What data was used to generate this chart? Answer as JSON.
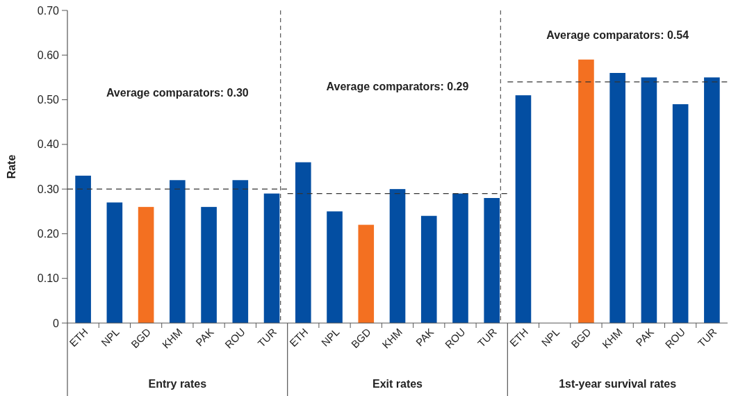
{
  "chart_data": [
    {
      "type": "bar",
      "xlabel": "Entry rates",
      "ylabel": "Rate",
      "categories": [
        "ETH",
        "NPL",
        "BGD",
        "KHM",
        "PAK",
        "ROU",
        "TUR"
      ],
      "values": [
        0.33,
        0.27,
        0.26,
        0.32,
        0.26,
        0.32,
        0.29
      ],
      "colors": [
        "#034ea2",
        "#034ea2",
        "#f37021",
        "#034ea2",
        "#034ea2",
        "#034ea2",
        "#034ea2"
      ],
      "ylim": [
        0,
        0.7
      ],
      "yticks": [
        0,
        {
          "value": 0.1,
          "label": "0.10"
        },
        {
          "value": 0.2,
          "label": "0.20"
        },
        {
          "value": 0.3,
          "label": "0.30"
        },
        {
          "value": 0.4,
          "label": "0.40"
        },
        {
          "value": 0.5,
          "label": "0.50"
        },
        {
          "value": 0.6,
          "label": "0.60"
        },
        {
          "value": 0.7,
          "label": "0.70"
        }
      ],
      "ref_lines": [
        {
          "axis": "y",
          "value": 0.3,
          "label": "Average comparators: 0.30",
          "line_style": "dashed",
          "color": "#333333"
        }
      ]
    },
    {
      "type": "bar",
      "xlabel": "Exit rates",
      "categories": [
        "ETH",
        "NPL",
        "BGD",
        "KHM",
        "PAK",
        "ROU",
        "TUR"
      ],
      "values": [
        0.36,
        0.25,
        0.22,
        0.3,
        0.24,
        0.29,
        0.28
      ],
      "colors": [
        "#034ea2",
        "#034ea2",
        "#f37021",
        "#034ea2",
        "#034ea2",
        "#034ea2",
        "#034ea2"
      ],
      "ylim": [
        0,
        0.7
      ],
      "tick_labels": "x",
      "ref_lines": [
        {
          "axis": "y",
          "value": 0.29,
          "label": "Average comparators: 0.29",
          "line_style": "dashed",
          "color": "#333333"
        }
      ]
    },
    {
      "type": "bar",
      "xlabel": "1st-year survival rates",
      "categories": [
        "ETH",
        "NPL",
        "BGD",
        "KHM",
        "PAK",
        "ROU",
        "TUR"
      ],
      "values": [
        0.51,
        null,
        0.59,
        0.56,
        0.55,
        0.49,
        0.55
      ],
      "colors": [
        "#034ea2",
        null,
        "#f37021",
        "#034ea2",
        "#034ea2",
        "#034ea2",
        "#034ea2"
      ],
      "ylim": [
        0,
        0.7
      ],
      "tick_labels": "x",
      "ref_lines": [
        {
          "axis": "y",
          "value": 0.54,
          "label": "Average comparators: 0.54",
          "line_style": "dashed",
          "color": "#333333"
        }
      ]
    }
  ]
}
